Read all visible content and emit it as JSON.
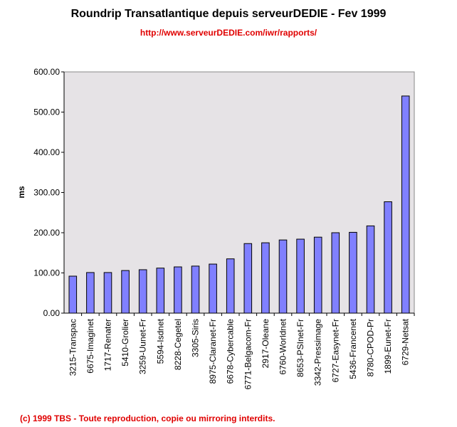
{
  "chart_data": {
    "type": "bar",
    "title": "Roundrip Transatlantique depuis serveurDEDIE - Fev 1999",
    "subtitle": "http://www.serveurDEDIE.com/iwr/rapports/",
    "xlabel": "",
    "ylabel": "ms",
    "ylim": [
      0,
      600
    ],
    "yticks": [
      "0.00",
      "100.00",
      "200.00",
      "300.00",
      "400.00",
      "500.00",
      "600.00"
    ],
    "grid": false,
    "categories": [
      "3215-Transpac",
      "6675-Imaginet",
      "1717-Renater",
      "5410-Grolier",
      "3259-Uunet-Fr",
      "5594-Isdnet",
      "8228-Cegetel",
      "3305-Siris",
      "8975-Claranet-Fr",
      "6678-Cybercable",
      "6771-Belgacom-Fr",
      "2917-Oleane",
      "6760-Worldnet",
      "8653-PSInet-Fr",
      "3342-Pressimage",
      "6727-Easynet-Fr",
      "5436-Francenet",
      "8780-CPOD-Pr",
      "1899-Eunet-Fr",
      "6729-Netsat"
    ],
    "values": [
      92,
      101,
      101,
      106,
      108,
      112,
      115,
      117,
      122,
      135,
      173,
      175,
      182,
      184,
      189,
      200,
      201,
      217,
      277,
      540
    ],
    "colors": {
      "bar": "#8080ff",
      "plot_bg": "#e6e3e6",
      "text_red": "#e00000"
    }
  },
  "footer": {
    "copyright": "(c) 1999 TBS - Toute reproduction, copie ou mirroring interdits."
  }
}
